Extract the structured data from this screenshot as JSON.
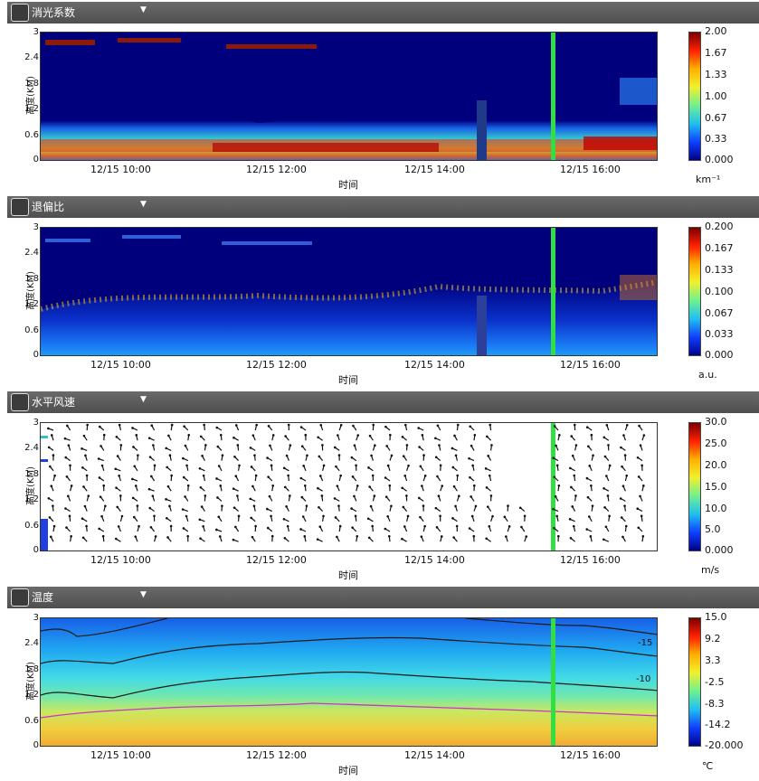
{
  "colors": {
    "header_bg": "#555555",
    "header_text": "#ffffff",
    "green_marker": "#33dd44",
    "arrow": "#111111",
    "contour": "#1a1a1a",
    "contour_warm": "#cc33cc"
  },
  "panels": [
    {
      "id": "extinction",
      "icon": "extinction-icon",
      "title": "消光系数",
      "unit": "km⁻¹",
      "ytitle": "高度(KM)",
      "cbar_labels": [
        "2.00",
        "1.67",
        "1.33",
        "1.00",
        "0.67",
        "0.33",
        "0.000"
      ]
    },
    {
      "id": "depol",
      "icon": "depolarization-icon",
      "title": "退偏比",
      "unit": "a.u.",
      "ytitle": "高度(KM)",
      "cbar_labels": [
        "0.200",
        "0.167",
        "0.133",
        "0.100",
        "0.067",
        "0.033",
        "0.000"
      ]
    },
    {
      "id": "wind",
      "icon": "wind-icon",
      "title": "水平风速",
      "unit": "m/s",
      "ytitle": "高度(KM)",
      "cbar_labels": [
        "30.0",
        "25.0",
        "20.0",
        "15.0",
        "10.0",
        "5.0",
        "0.000"
      ]
    },
    {
      "id": "temp",
      "icon": "temperature-icon",
      "title": "温度",
      "unit": "℃",
      "ytitle": "高度(KM)",
      "cbar_labels": [
        "15.0",
        "9.2",
        "3.3",
        "-2.5",
        "-8.3",
        "-14.2",
        "-20.000"
      ]
    }
  ],
  "axes": {
    "y_ticks": [
      "3",
      "2.4",
      "1.8",
      "1.2",
      "0.6",
      "0"
    ],
    "x_ticks": [
      "12/15  10:00",
      "12/15  12:00",
      "12/15  14:00",
      "12/15  16:00"
    ],
    "x_title": "时间"
  },
  "contour_labels": [
    "-15",
    "-10"
  ],
  "chart_data": [
    {
      "type": "heatmap",
      "title": "消光系数",
      "ylabel": "高度(KM)",
      "xlabel": "时间",
      "ylim": [
        0,
        3
      ],
      "x_categories": [
        "12/15 10:00",
        "12/15 12:00",
        "12/15 14:00",
        "12/15 16:00"
      ],
      "colorbar": {
        "range": [
          0,
          2.0
        ],
        "unit": "km⁻¹",
        "ticks": [
          2.0,
          1.67,
          1.33,
          1.0,
          0.67,
          0.33,
          0.0
        ]
      }
    },
    {
      "type": "heatmap",
      "title": "退偏比",
      "ylabel": "高度(KM)",
      "xlabel": "时间",
      "ylim": [
        0,
        3
      ],
      "x_categories": [
        "12/15 10:00",
        "12/15 12:00",
        "12/15 14:00",
        "12/15 16:00"
      ],
      "colorbar": {
        "range": [
          0,
          0.2
        ],
        "unit": "a.u.",
        "ticks": [
          0.2,
          0.167,
          0.133,
          0.1,
          0.067,
          0.033,
          0.0
        ]
      }
    },
    {
      "type": "scatter",
      "title": "水平风速",
      "ylabel": "高度(KM)",
      "xlabel": "时间",
      "ylim": [
        0,
        3
      ],
      "x_categories": [
        "12/15 10:00",
        "12/15 12:00",
        "12/15 14:00",
        "12/15 16:00"
      ],
      "colorbar": {
        "range": [
          0,
          30
        ],
        "unit": "m/s",
        "ticks": [
          30.0,
          25.0,
          20.0,
          15.0,
          10.0,
          5.0,
          0.0
        ]
      }
    },
    {
      "type": "heatmap",
      "title": "温度",
      "ylabel": "高度(KM)",
      "xlabel": "时间",
      "ylim": [
        0,
        3
      ],
      "x_categories": [
        "12/15 10:00",
        "12/15 12:00",
        "12/15 14:00",
        "12/15 16:00"
      ],
      "colorbar": {
        "range": [
          -20,
          15
        ],
        "unit": "℃",
        "ticks": [
          15.0,
          9.2,
          3.3,
          -2.5,
          -8.3,
          -14.2,
          -20.0
        ]
      },
      "contour_labels": [
        "-15",
        "-10"
      ]
    }
  ]
}
